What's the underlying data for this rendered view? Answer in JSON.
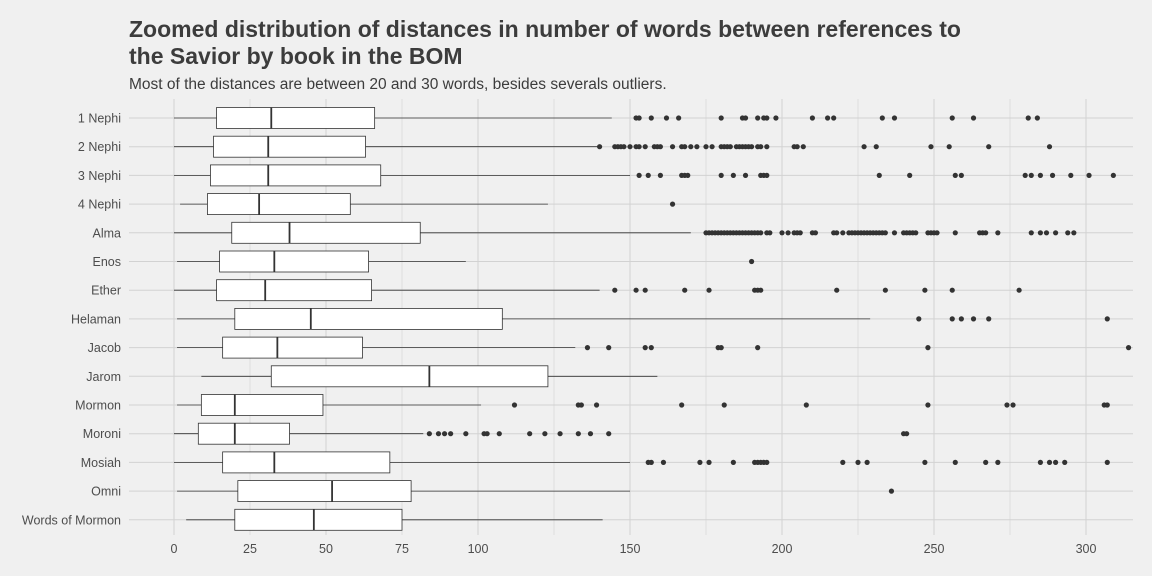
{
  "chart_data": {
    "type": "boxplot",
    "title": "Zoomed distribution of distances in number of  words between references to\n the Savior by book in the BOM",
    "subtitle": "Most of the distances are between 20 and 30 words, besides severals outliers.",
    "xlabel": "",
    "ylabel": "",
    "xlim": [
      -15,
      314
    ],
    "x_ticks": [
      0,
      25,
      50,
      75,
      100,
      150,
      200,
      250,
      300
    ],
    "grid": true,
    "colors": {
      "background": "#f0f0f0",
      "grid": "#d2d2d2",
      "box_fill": "#ffffff",
      "stroke": "#333333",
      "point": "#333333"
    },
    "categories": [
      "1 Nephi",
      "2 Nephi",
      "3 Nephi",
      "4 Nephi",
      "Alma",
      "Enos",
      "Ether",
      "Helaman",
      "Jacob",
      "Jarom",
      "Mormon",
      "Moroni",
      "Mosiah",
      "Omni",
      "Words of Mormon"
    ],
    "boxes": [
      {
        "name": "1 Nephi",
        "min": 0,
        "q1": 14,
        "median": 32,
        "q3": 66,
        "max": 144,
        "outliers": [
          152,
          153,
          157,
          162,
          166,
          180,
          187,
          188,
          192,
          194,
          195,
          198,
          210,
          215,
          217,
          233,
          237,
          256,
          263,
          281,
          284
        ]
      },
      {
        "name": "2 Nephi",
        "min": 0,
        "q1": 13,
        "median": 31,
        "q3": 63,
        "max": 140,
        "outliers": [
          140,
          145,
          146,
          147,
          148,
          150,
          152,
          153,
          155,
          158,
          159,
          160,
          164,
          167,
          168,
          170,
          172,
          175,
          177,
          180,
          181,
          182,
          183,
          185,
          186,
          187,
          188,
          189,
          190,
          192,
          193,
          195,
          204,
          205,
          207,
          227,
          231,
          249,
          255,
          268,
          288
        ]
      },
      {
        "name": "3 Nephi",
        "min": 0,
        "q1": 12,
        "median": 31,
        "q3": 68,
        "max": 150,
        "outliers": [
          153,
          156,
          160,
          167,
          168,
          169,
          180,
          184,
          188,
          193,
          194,
          195,
          232,
          242,
          257,
          259,
          280,
          282,
          285,
          289,
          295,
          301,
          309
        ]
      },
      {
        "name": "4 Nephi",
        "min": 2,
        "q1": 11,
        "median": 28,
        "q3": 58,
        "max": 123,
        "outliers": [
          164
        ]
      },
      {
        "name": "Alma",
        "min": 0,
        "q1": 19,
        "median": 38,
        "q3": 81,
        "max": 170,
        "outliers": [
          175,
          176,
          177,
          178,
          179,
          180,
          181,
          182,
          183,
          184,
          185,
          186,
          187,
          188,
          189,
          190,
          191,
          192,
          193,
          195,
          196,
          200,
          202,
          204,
          205,
          206,
          210,
          211,
          217,
          218,
          220,
          222,
          223,
          224,
          225,
          226,
          227,
          228,
          229,
          230,
          231,
          232,
          233,
          234,
          237,
          240,
          241,
          242,
          243,
          244,
          248,
          249,
          250,
          251,
          257,
          265,
          266,
          267,
          271,
          282,
          285,
          287,
          290,
          294,
          296
        ]
      },
      {
        "name": "Enos",
        "min": 1,
        "q1": 15,
        "median": 33,
        "q3": 64,
        "max": 96,
        "outliers": [
          190
        ]
      },
      {
        "name": "Ether",
        "min": 0,
        "q1": 14,
        "median": 30,
        "q3": 65,
        "max": 140,
        "outliers": [
          145,
          152,
          155,
          168,
          176,
          191,
          192,
          193,
          218,
          234,
          247,
          256,
          278
        ]
      },
      {
        "name": "Helaman",
        "min": 1,
        "q1": 20,
        "median": 45,
        "q3": 108,
        "max": 229,
        "outliers": [
          245,
          256,
          259,
          263,
          268,
          307
        ]
      },
      {
        "name": "Jacob",
        "min": 1,
        "q1": 16,
        "median": 34,
        "q3": 62,
        "max": 132,
        "outliers": [
          136,
          143,
          155,
          157,
          179,
          180,
          192,
          248,
          314
        ]
      },
      {
        "name": "Jarom",
        "min": 9,
        "q1": 32,
        "median": 84,
        "q3": 123,
        "max": 159,
        "outliers": []
      },
      {
        "name": "Mormon",
        "min": 1,
        "q1": 9,
        "median": 20,
        "q3": 49,
        "max": 101,
        "outliers": [
          112,
          133,
          134,
          139,
          167,
          181,
          208,
          248,
          274,
          276,
          306,
          307
        ]
      },
      {
        "name": "Moroni",
        "min": 0,
        "q1": 8,
        "median": 20,
        "q3": 38,
        "max": 82,
        "outliers": [
          84,
          87,
          89,
          91,
          96,
          102,
          103,
          107,
          117,
          122,
          127,
          133,
          137,
          143,
          240,
          241
        ]
      },
      {
        "name": "Mosiah",
        "min": 0,
        "q1": 16,
        "median": 33,
        "q3": 71,
        "max": 150,
        "outliers": [
          156,
          157,
          161,
          173,
          176,
          184,
          191,
          192,
          193,
          194,
          195,
          220,
          225,
          228,
          247,
          257,
          267,
          271,
          285,
          288,
          290,
          293,
          307
        ]
      },
      {
        "name": "Omni",
        "min": 1,
        "q1": 21,
        "median": 52,
        "q3": 78,
        "max": 150,
        "outliers": [
          236
        ]
      },
      {
        "name": "Words of Mormon",
        "min": 4,
        "q1": 20,
        "median": 46,
        "q3": 75,
        "max": 141,
        "outliers": []
      }
    ]
  }
}
